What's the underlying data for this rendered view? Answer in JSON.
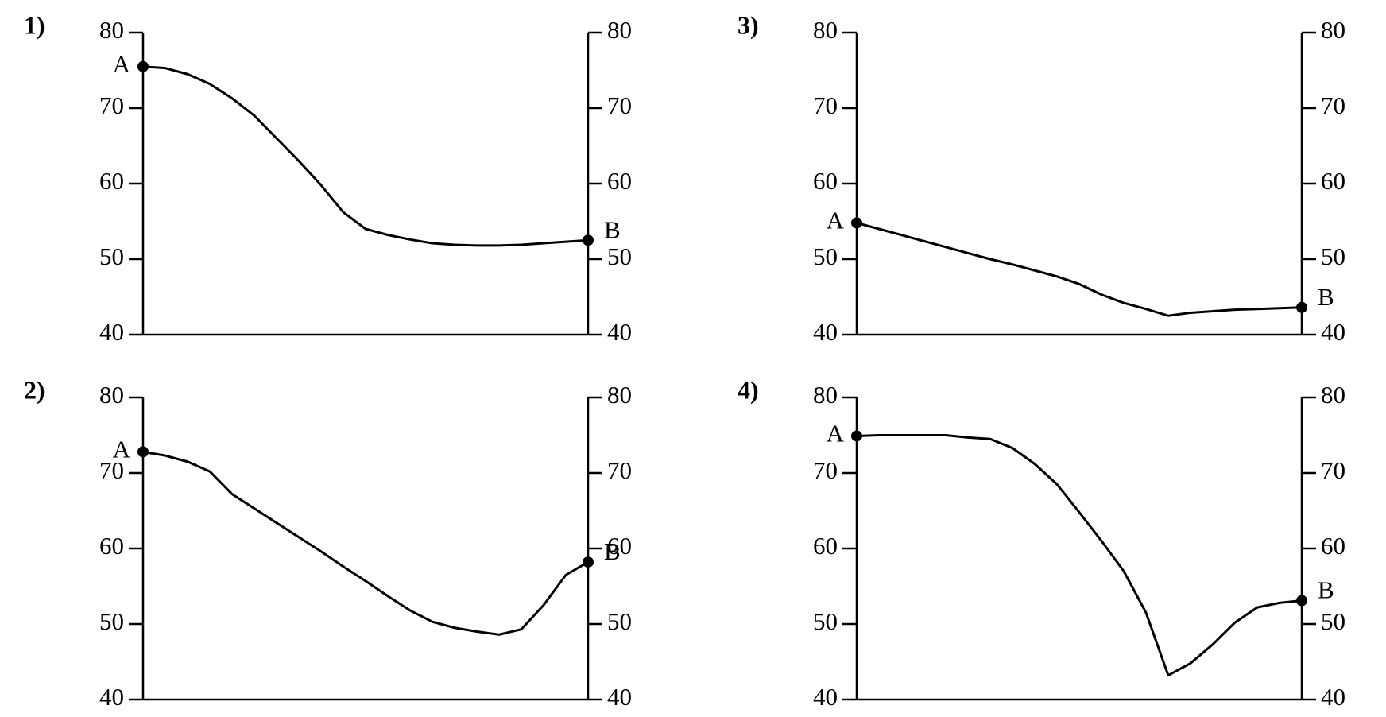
{
  "chart_data": [
    {
      "type": "line",
      "title": "1)",
      "annotations": [
        "A",
        "B"
      ],
      "color": "#000000",
      "values": [
        75.5,
        75.3,
        74.5,
        73.2,
        71.3,
        69.0,
        66.0,
        63.0,
        59.8,
        56.2,
        54.0,
        53.2,
        52.6,
        52.1,
        51.9,
        51.8,
        51.8,
        51.9,
        52.1,
        52.3,
        52.5
      ],
      "ylim": [
        40,
        80
      ],
      "yticks": [
        40,
        50,
        60,
        70,
        80
      ],
      "y2lim": [
        40,
        80
      ],
      "y2ticks": [
        40,
        50,
        60,
        70,
        80
      ]
    },
    {
      "type": "line",
      "title": "2)",
      "annotations": [
        "A",
        "B"
      ],
      "color": "#000000",
      "values": [
        72.8,
        72.3,
        71.5,
        70.2,
        67.2,
        65.3,
        63.4,
        61.5,
        59.6,
        57.6,
        55.7,
        53.7,
        51.8,
        50.3,
        49.5,
        49.0,
        48.6,
        49.3,
        52.5,
        56.5,
        58.2
      ],
      "ylim": [
        40,
        80
      ],
      "yticks": [
        40,
        50,
        60,
        70,
        80
      ],
      "y2lim": [
        40,
        80
      ],
      "y2ticks": [
        40,
        50,
        60,
        70,
        80
      ]
    },
    {
      "type": "line",
      "title": "3)",
      "annotations": [
        "A",
        "B"
      ],
      "color": "#000000",
      "values": [
        54.8,
        54.0,
        53.2,
        52.4,
        51.6,
        50.8,
        50.0,
        49.3,
        48.5,
        47.7,
        46.7,
        45.3,
        44.2,
        43.4,
        42.5,
        42.9,
        43.1,
        43.3,
        43.4,
        43.5,
        43.6
      ],
      "ylim": [
        40,
        80
      ],
      "yticks": [
        40,
        50,
        60,
        70,
        80
      ],
      "y2lim": [
        40,
        80
      ],
      "y2ticks": [
        40,
        50,
        60,
        70,
        80
      ]
    },
    {
      "type": "line",
      "title": "4)",
      "annotations": [
        "A",
        "B"
      ],
      "color": "#000000",
      "values": [
        74.9,
        75.0,
        75.0,
        75.0,
        75.0,
        74.7,
        74.5,
        73.3,
        71.2,
        68.5,
        64.8,
        61.0,
        57.0,
        51.5,
        43.2,
        44.8,
        47.3,
        50.2,
        52.2,
        52.8,
        53.1
      ],
      "ylim": [
        40,
        80
      ],
      "yticks": [
        40,
        50,
        60,
        70,
        80
      ],
      "y2lim": [
        40,
        80
      ],
      "y2ticks": [
        40,
        50,
        60,
        70,
        80
      ]
    }
  ]
}
